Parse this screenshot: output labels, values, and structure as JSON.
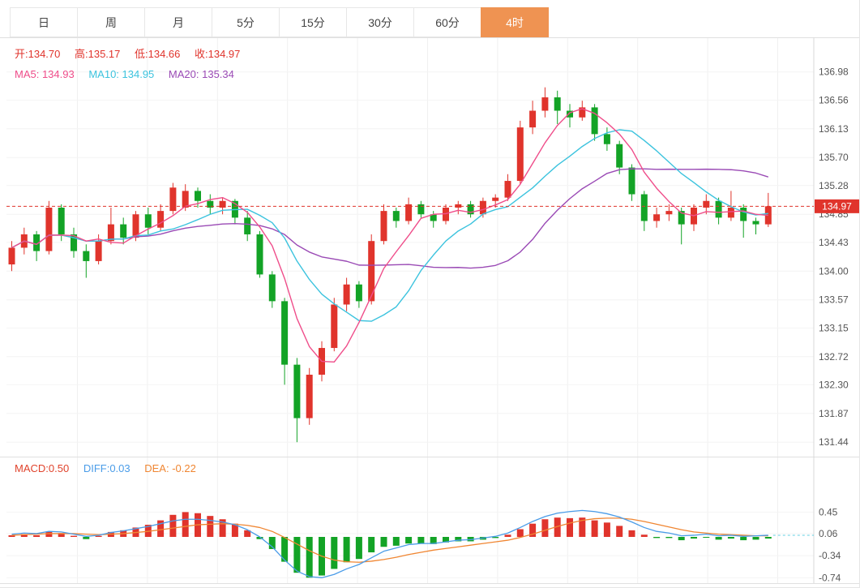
{
  "tabs": [
    {
      "label": "日"
    },
    {
      "label": "周"
    },
    {
      "label": "月"
    },
    {
      "label": "5分"
    },
    {
      "label": "15分"
    },
    {
      "label": "30分"
    },
    {
      "label": "60分"
    },
    {
      "label": "4时",
      "active": true
    }
  ],
  "active_tab": "4时",
  "main_legend": {
    "ohlc": [
      "开:134.70",
      "高:135.17",
      "低:134.66",
      "收:134.97"
    ],
    "ma": [
      "MA5: 134.93",
      "MA10: 134.95",
      "MA20: 135.34"
    ]
  },
  "macd_legend": [
    "MACD:0.50",
    "DIFF:0.03",
    "DEA: -0.22"
  ],
  "last_price": "134.97",
  "colors": {
    "up": "#e0342c",
    "down": "#13a326",
    "ma5": "#ef4d8a",
    "ma10": "#3cc3de",
    "ma20": "#9a4ab5",
    "diff": "#4a9ce8",
    "dea": "#f08632",
    "macd_text": "#e0432c",
    "accent": "#ef9352",
    "axis_text": "#555555",
    "grid": "#f0f0f0",
    "dashed": "#63cfe3"
  },
  "chart_data": {
    "type": "candlestick",
    "period": "4时",
    "title": "",
    "legend_position": "top-left",
    "grid": true,
    "price_axis_labels": [
      136.98,
      136.56,
      136.13,
      135.7,
      135.28,
      134.85,
      134.43,
      134.0,
      133.57,
      133.15,
      132.72,
      132.3,
      131.87,
      131.44
    ],
    "macd_axis_labels": [
      0.45,
      0.06,
      -0.34,
      -0.74
    ],
    "price_range": [
      131.44,
      136.98
    ],
    "last_price": 134.97,
    "ohlc_latest": {
      "open": 134.7,
      "high": 135.17,
      "low": 134.66,
      "close": 134.97
    },
    "ma_latest": {
      "MA5": 134.93,
      "MA10": 134.95,
      "MA20": 135.34
    },
    "ma_periods": [
      5,
      10,
      20
    ],
    "macd_latest": {
      "MACD": 0.5,
      "DIFF": 0.03,
      "DEA": -0.22
    },
    "candles": {
      "open": [
        134.1,
        134.35,
        134.55,
        134.3,
        134.95,
        134.55,
        134.3,
        134.15,
        134.45,
        134.7,
        134.5,
        134.85,
        134.65,
        134.9,
        134.95,
        135.2,
        135.05,
        134.95,
        135.05,
        134.8,
        134.55,
        133.95,
        133.55,
        132.6,
        131.8,
        132.45,
        132.85,
        133.5,
        133.8,
        133.55,
        134.45,
        134.9,
        134.75,
        135.0,
        134.85,
        134.75,
        134.95,
        135.0,
        134.85,
        135.05,
        135.1,
        135.35,
        136.15,
        136.4,
        136.6,
        136.4,
        136.3,
        136.45,
        136.05,
        135.9,
        135.55,
        135.15,
        134.75,
        134.85,
        134.9,
        134.7,
        134.95,
        135.05,
        134.8,
        134.95,
        134.75,
        134.7
      ],
      "high": [
        134.45,
        134.65,
        134.6,
        135.05,
        135.0,
        134.65,
        134.4,
        134.55,
        134.95,
        134.8,
        134.9,
        134.95,
        135.0,
        135.32,
        135.3,
        135.25,
        135.15,
        135.1,
        135.08,
        134.9,
        134.6,
        134.0,
        133.6,
        132.7,
        132.55,
        132.95,
        133.6,
        133.9,
        133.85,
        134.55,
        135.0,
        134.95,
        135.1,
        135.05,
        134.9,
        135.0,
        135.05,
        135.05,
        135.1,
        135.15,
        135.45,
        136.25,
        136.55,
        136.75,
        136.7,
        136.5,
        136.55,
        136.5,
        136.15,
        135.95,
        135.6,
        135.2,
        134.95,
        135.0,
        134.95,
        135.0,
        135.15,
        135.1,
        135.2,
        135.0,
        134.8,
        135.17
      ],
      "low": [
        134.0,
        134.25,
        134.15,
        134.25,
        134.45,
        134.2,
        133.9,
        134.1,
        134.4,
        134.4,
        134.45,
        134.55,
        134.6,
        134.85,
        134.9,
        134.95,
        134.85,
        134.85,
        134.7,
        134.45,
        133.9,
        133.45,
        132.3,
        131.44,
        131.7,
        132.35,
        132.8,
        133.4,
        133.45,
        133.5,
        134.4,
        134.65,
        134.7,
        134.8,
        134.65,
        134.7,
        134.85,
        134.8,
        134.8,
        134.95,
        135.05,
        135.3,
        136.05,
        136.3,
        136.2,
        136.15,
        136.25,
        135.95,
        135.8,
        135.45,
        135.05,
        134.6,
        134.65,
        134.75,
        134.4,
        134.6,
        134.85,
        134.7,
        134.75,
        134.5,
        134.55,
        134.66
      ],
      "close": [
        134.35,
        134.55,
        134.3,
        134.95,
        134.55,
        134.3,
        134.15,
        134.45,
        134.7,
        134.5,
        134.85,
        134.65,
        134.9,
        135.25,
        135.2,
        135.05,
        134.95,
        135.05,
        134.8,
        134.55,
        133.95,
        133.55,
        132.6,
        131.8,
        132.45,
        132.85,
        133.5,
        133.8,
        133.55,
        134.45,
        134.9,
        134.75,
        135.0,
        134.85,
        134.75,
        134.95,
        135.0,
        134.85,
        135.05,
        135.1,
        135.35,
        136.15,
        136.4,
        136.6,
        136.4,
        136.3,
        136.45,
        136.05,
        135.9,
        135.55,
        135.15,
        134.75,
        134.85,
        134.9,
        134.7,
        134.95,
        135.05,
        134.8,
        134.95,
        134.75,
        134.7,
        134.97
      ]
    },
    "macd": {
      "hist": [
        0.03,
        0.05,
        0.03,
        0.09,
        0.07,
        0.02,
        -0.04,
        0.02,
        0.09,
        0.12,
        0.17,
        0.22,
        0.3,
        0.4,
        0.45,
        0.43,
        0.38,
        0.32,
        0.24,
        0.12,
        -0.04,
        -0.22,
        -0.45,
        -0.65,
        -0.74,
        -0.7,
        -0.58,
        -0.46,
        -0.4,
        -0.28,
        -0.18,
        -0.16,
        -0.12,
        -0.12,
        -0.13,
        -0.1,
        -0.08,
        -0.08,
        -0.05,
        -0.02,
        0.04,
        0.14,
        0.24,
        0.32,
        0.35,
        0.34,
        0.35,
        0.3,
        0.26,
        0.2,
        0.12,
        0.04,
        -0.02,
        -0.02,
        -0.06,
        -0.03,
        -0.01,
        -0.05,
        -0.03,
        -0.06,
        -0.05,
        -0.03
      ],
      "diff": [
        0.05,
        0.07,
        0.06,
        0.1,
        0.09,
        0.05,
        0.01,
        0.03,
        0.08,
        0.11,
        0.15,
        0.19,
        0.24,
        0.29,
        0.32,
        0.32,
        0.3,
        0.27,
        0.22,
        0.13,
        0.0,
        -0.18,
        -0.42,
        -0.62,
        -0.72,
        -0.74,
        -0.68,
        -0.58,
        -0.5,
        -0.38,
        -0.26,
        -0.2,
        -0.14,
        -0.12,
        -0.12,
        -0.09,
        -0.06,
        -0.05,
        -0.02,
        0.01,
        0.07,
        0.17,
        0.28,
        0.37,
        0.43,
        0.46,
        0.48,
        0.46,
        0.42,
        0.36,
        0.27,
        0.17,
        0.1,
        0.07,
        0.02,
        0.03,
        0.05,
        0.02,
        0.03,
        0.01,
        0.02,
        0.03
      ],
      "dea": [
        0.03,
        0.04,
        0.05,
        0.06,
        0.06,
        0.06,
        0.05,
        0.04,
        0.05,
        0.06,
        0.08,
        0.1,
        0.13,
        0.16,
        0.19,
        0.22,
        0.23,
        0.24,
        0.23,
        0.21,
        0.17,
        0.1,
        -0.01,
        -0.13,
        -0.25,
        -0.35,
        -0.42,
        -0.45,
        -0.46,
        -0.44,
        -0.41,
        -0.37,
        -0.32,
        -0.28,
        -0.24,
        -0.21,
        -0.18,
        -0.15,
        -0.12,
        -0.09,
        -0.06,
        -0.01,
        0.05,
        0.12,
        0.19,
        0.25,
        0.3,
        0.33,
        0.34,
        0.34,
        0.32,
        0.28,
        0.23,
        0.18,
        0.13,
        0.09,
        0.07,
        0.05,
        0.04,
        0.03,
        0.02,
        0.02
      ]
    }
  }
}
